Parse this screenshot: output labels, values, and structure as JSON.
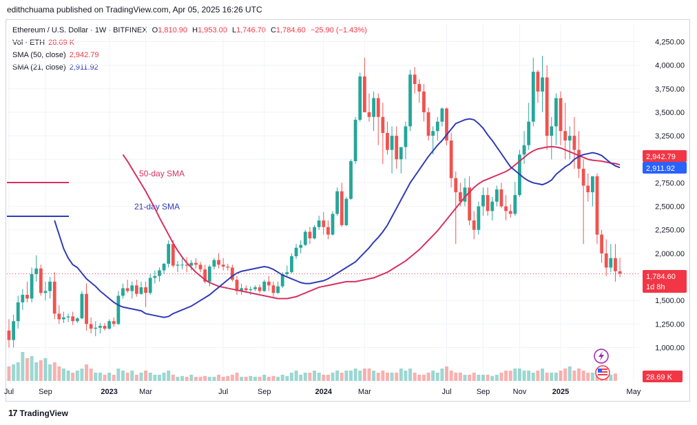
{
  "publish_line": "edithchuama published on TradingView.com, Apr 05, 2025 16:26 UTC",
  "symbol": {
    "title": "Ethereum / U.S. Dollar · 1W · BITFINEX",
    "open_label": "O",
    "open": "1,810.90",
    "high_label": "H",
    "high": "1,953.00",
    "low_label": "L",
    "low": "1,746.70",
    "close_label": "C",
    "close": "1,784.60",
    "change": "−25.90 (−1.43%)"
  },
  "volume": {
    "label": "Vol · ETH",
    "value": "28.69 K"
  },
  "sma50": {
    "label": "SMA (50, close)",
    "value": "2,942.79"
  },
  "sma21": {
    "label": "SMA (21, close)",
    "value": "2,911.92"
  },
  "footer": {
    "brand": "TradingView",
    "logo": "17"
  },
  "colors": {
    "up": "#26a69a",
    "down": "#ef5350",
    "sma50": "#d6305e",
    "sma21": "#2f3bb5",
    "tag_red": "#f23645",
    "tag_blue": "#2962ff"
  },
  "price_tags": {
    "sma50": "2,942.79",
    "sma21": "2,911.92",
    "last_price": "1,784.60",
    "countdown": "1d 8h",
    "volume": "28.69 K"
  },
  "chart_data": {
    "type": "candlestick",
    "title": "Ethereum / U.S. Dollar · 1W · BITFINEX",
    "y_ticks": [
      "4,250.00",
      "4,000.00",
      "3,750.00",
      "3,500.00",
      "3,250.00",
      "3,000.00",
      "2,750.00",
      "2,500.00",
      "2,250.00",
      "2,000.00",
      "1,750.00",
      "1,500.00",
      "1,250.00",
      "1,000.00"
    ],
    "y_tick_values": [
      4250,
      4000,
      3750,
      3500,
      3250,
      3000,
      2750,
      2500,
      2250,
      2000,
      1750,
      1500,
      1250,
      1000
    ],
    "ylim": [
      850,
      4400
    ],
    "x_ticks": [
      "Jul",
      "Sep",
      "2023",
      "Mar",
      "Jul",
      "Sep",
      "2024",
      "Mar",
      "Jul",
      "Sep",
      "Nov",
      "2025",
      "May"
    ],
    "x_tick_weeks": [
      0,
      8,
      22,
      30,
      47,
      56,
      69,
      78,
      96,
      104,
      112,
      121,
      137
    ],
    "annotations": [
      {
        "text": "50-day SMA",
        "color": "#d6305e"
      },
      {
        "text": "21-day SMA",
        "color": "#2f3bb5"
      }
    ],
    "candles": [
      [
        1180,
        1300,
        1000,
        1080
      ],
      [
        1080,
        1350,
        1000,
        1280
      ],
      [
        1280,
        1550,
        1200,
        1480
      ],
      [
        1480,
        1620,
        1400,
        1560
      ],
      [
        1560,
        1700,
        1480,
        1520
      ],
      [
        1520,
        1850,
        1480,
        1780
      ],
      [
        1780,
        1980,
        1700,
        1840
      ],
      [
        1840,
        1880,
        1550,
        1580
      ],
      [
        1580,
        1700,
        1500,
        1600
      ],
      [
        1600,
        1750,
        1520,
        1700
      ],
      [
        1700,
        1800,
        1300,
        1360
      ],
      [
        1360,
        1450,
        1250,
        1300
      ],
      [
        1300,
        1380,
        1260,
        1320
      ],
      [
        1320,
        1360,
        1270,
        1330
      ],
      [
        1330,
        1380,
        1240,
        1280
      ],
      [
        1280,
        1320,
        1260,
        1310
      ],
      [
        1310,
        1600,
        1300,
        1570
      ],
      [
        1570,
        1680,
        1180,
        1250
      ],
      [
        1250,
        1320,
        1150,
        1200
      ],
      [
        1200,
        1280,
        1120,
        1210
      ],
      [
        1210,
        1260,
        1150,
        1230
      ],
      [
        1230,
        1260,
        1180,
        1200
      ],
      [
        1200,
        1300,
        1190,
        1280
      ],
      [
        1280,
        1320,
        1220,
        1250
      ],
      [
        1250,
        1600,
        1240,
        1550
      ],
      [
        1550,
        1680,
        1520,
        1630
      ],
      [
        1630,
        1720,
        1580,
        1600
      ],
      [
        1600,
        1700,
        1520,
        1660
      ],
      [
        1660,
        1720,
        1540,
        1570
      ],
      [
        1570,
        1700,
        1560,
        1640
      ],
      [
        1640,
        1700,
        1430,
        1580
      ],
      [
        1580,
        1780,
        1560,
        1740
      ],
      [
        1740,
        1820,
        1680,
        1760
      ],
      [
        1760,
        1850,
        1700,
        1820
      ],
      [
        1820,
        1900,
        1780,
        1890
      ],
      [
        1890,
        2140,
        1850,
        2100
      ],
      [
        2100,
        2140,
        1850,
        1870
      ],
      [
        1870,
        1920,
        1800,
        1880
      ],
      [
        1880,
        1950,
        1830,
        1880
      ],
      [
        1880,
        1960,
        1800,
        1870
      ],
      [
        1870,
        1930,
        1820,
        1900
      ],
      [
        1900,
        1950,
        1840,
        1880
      ],
      [
        1880,
        1910,
        1800,
        1830
      ],
      [
        1830,
        1880,
        1680,
        1700
      ],
      [
        1700,
        1880,
        1650,
        1860
      ],
      [
        1860,
        1950,
        1830,
        1930
      ],
      [
        1930,
        2000,
        1840,
        1880
      ],
      [
        1880,
        1950,
        1820,
        1860
      ],
      [
        1860,
        1890,
        1820,
        1850
      ],
      [
        1850,
        1880,
        1700,
        1720
      ],
      [
        1720,
        1760,
        1560,
        1600
      ],
      [
        1600,
        1680,
        1560,
        1630
      ],
      [
        1630,
        1660,
        1580,
        1610
      ],
      [
        1610,
        1650,
        1560,
        1620
      ],
      [
        1620,
        1660,
        1600,
        1640
      ],
      [
        1640,
        1670,
        1580,
        1600
      ],
      [
        1600,
        1720,
        1590,
        1700
      ],
      [
        1700,
        1760,
        1600,
        1660
      ],
      [
        1660,
        1700,
        1540,
        1580
      ],
      [
        1580,
        1700,
        1570,
        1650
      ],
      [
        1650,
        1800,
        1630,
        1780
      ],
      [
        1780,
        1870,
        1760,
        1800
      ],
      [
        1800,
        2000,
        1790,
        1970
      ],
      [
        1970,
        2100,
        1940,
        2060
      ],
      [
        2060,
        2140,
        2000,
        2090
      ],
      [
        2090,
        2250,
        2080,
        2230
      ],
      [
        2230,
        2280,
        2100,
        2160
      ],
      [
        2160,
        2300,
        2150,
        2280
      ],
      [
        2280,
        2400,
        2250,
        2350
      ],
      [
        2350,
        2440,
        2200,
        2280
      ],
      [
        2280,
        2350,
        2150,
        2200
      ],
      [
        2200,
        2450,
        2190,
        2420
      ],
      [
        2420,
        2700,
        2400,
        2660
      ],
      [
        2660,
        2750,
        2280,
        2300
      ],
      [
        2300,
        2600,
        2290,
        2580
      ],
      [
        2580,
        3000,
        2570,
        2980
      ],
      [
        2980,
        3450,
        2950,
        3420
      ],
      [
        3420,
        3920,
        3400,
        3880
      ],
      [
        3880,
        4080,
        3500,
        3500
      ],
      [
        3500,
        3700,
        3400,
        3450
      ],
      [
        3450,
        3720,
        3300,
        3650
      ],
      [
        3650,
        3700,
        3150,
        3450
      ],
      [
        3450,
        3600,
        2950,
        3280
      ],
      [
        3280,
        3400,
        3050,
        3100
      ],
      [
        3100,
        3350,
        2850,
        3250
      ],
      [
        3250,
        3350,
        2900,
        3000
      ],
      [
        3000,
        3100,
        2850,
        3130
      ],
      [
        3130,
        3400,
        3000,
        3350
      ],
      [
        3350,
        3950,
        3300,
        3900
      ],
      [
        3900,
        3980,
        3700,
        3800
      ],
      [
        3800,
        3850,
        3600,
        3720
      ],
      [
        3720,
        3800,
        3400,
        3500
      ],
      [
        3500,
        3550,
        3200,
        3250
      ],
      [
        3250,
        3350,
        3050,
        3300
      ],
      [
        3300,
        3450,
        3200,
        3400
      ],
      [
        3400,
        3550,
        3350,
        3540
      ],
      [
        3540,
        3550,
        3150,
        3200
      ],
      [
        3200,
        3280,
        2700,
        2800
      ],
      [
        2800,
        2870,
        2100,
        2650
      ],
      [
        2650,
        2750,
        2500,
        2550
      ],
      [
        2550,
        2800,
        2500,
        2700
      ],
      [
        2700,
        2820,
        2300,
        2350
      ],
      [
        2350,
        2450,
        2150,
        2250
      ],
      [
        2250,
        2550,
        2200,
        2500
      ],
      [
        2500,
        2700,
        2400,
        2620
      ],
      [
        2620,
        2700,
        2400,
        2450
      ],
      [
        2450,
        2600,
        2350,
        2550
      ],
      [
        2550,
        2720,
        2500,
        2680
      ],
      [
        2680,
        2750,
        2480,
        2500
      ],
      [
        2500,
        2620,
        2350,
        2450
      ],
      [
        2450,
        2520,
        2380,
        2420
      ],
      [
        2420,
        2760,
        2400,
        2620
      ],
      [
        2620,
        3100,
        2600,
        3050
      ],
      [
        3050,
        3300,
        2950,
        3150
      ],
      [
        3150,
        3600,
        3100,
        3400
      ],
      [
        3400,
        4080,
        3350,
        3930
      ],
      [
        3930,
        3950,
        3600,
        3720
      ],
      [
        3720,
        4100,
        3500,
        3870
      ],
      [
        3870,
        4000,
        3100,
        3250
      ],
      [
        3250,
        3450,
        3000,
        3350
      ],
      [
        3350,
        3700,
        3150,
        3650
      ],
      [
        3650,
        3720,
        3150,
        3300
      ],
      [
        3300,
        3600,
        3000,
        3200
      ],
      [
        3200,
        3350,
        3000,
        3250
      ],
      [
        3250,
        3450,
        2900,
        3100
      ],
      [
        3100,
        3300,
        2800,
        2900
      ],
      [
        2900,
        3000,
        2100,
        2720
      ],
      [
        2720,
        2850,
        2550,
        2650
      ],
      [
        2650,
        2800,
        2500,
        2820
      ],
      [
        2820,
        2850,
        2100,
        2200
      ],
      [
        2200,
        2250,
        1900,
        2000
      ],
      [
        2000,
        2150,
        1760,
        1850
      ],
      [
        1850,
        2100,
        1800,
        1950
      ],
      [
        1950,
        2100,
        1700,
        1810
      ],
      [
        1810,
        1953,
        1746.7,
        1784.6
      ]
    ],
    "volume_relative": [
      0.35,
      0.4,
      0.45,
      0.7,
      0.55,
      0.6,
      0.45,
      0.5,
      0.55,
      0.4,
      0.45,
      0.35,
      0.3,
      0.25,
      0.2,
      0.25,
      0.3,
      0.4,
      0.3,
      0.2,
      0.2,
      0.15,
      0.2,
      0.15,
      0.3,
      0.25,
      0.2,
      0.25,
      0.15,
      0.2,
      0.25,
      0.2,
      0.15,
      0.15,
      0.2,
      0.25,
      0.15,
      0.1,
      0.12,
      0.1,
      0.15,
      0.1,
      0.1,
      0.12,
      0.1,
      0.1,
      0.15,
      0.1,
      0.12,
      0.15,
      0.2,
      0.1,
      0.1,
      0.12,
      0.1,
      0.1,
      0.15,
      0.1,
      0.12,
      0.1,
      0.15,
      0.12,
      0.2,
      0.25,
      0.15,
      0.2,
      0.2,
      0.25,
      0.2,
      0.15,
      0.15,
      0.2,
      0.25,
      0.2,
      0.25,
      0.25,
      0.3,
      0.25,
      0.3,
      0.3,
      0.25,
      0.2,
      0.25,
      0.2,
      0.2,
      0.2,
      0.3,
      0.25,
      0.3,
      0.2,
      0.15,
      0.15,
      0.2,
      0.25,
      0.2,
      0.3,
      0.35,
      0.25,
      0.2,
      0.2,
      0.15,
      0.15,
      0.2,
      0.15,
      0.15,
      0.15,
      0.12,
      0.15,
      0.2,
      0.25,
      0.25,
      0.3,
      0.3,
      0.25,
      0.25,
      0.2,
      0.25,
      0.3,
      0.2,
      0.2,
      0.2,
      0.25,
      0.3,
      0.35,
      0.25,
      0.3,
      0.25,
      0.2,
      0.2,
      0.25,
      0.2,
      0.2,
      0.15,
      0.18
    ],
    "sma21": [
      2350,
      2200,
      2050,
      1950,
      1880,
      1850,
      1790,
      1730,
      1690,
      1650,
      1600,
      1560,
      1520,
      1480,
      1450,
      1430,
      1420,
      1410,
      1400,
      1390,
      1360,
      1350,
      1340,
      1330,
      1320,
      1330,
      1360,
      1380,
      1400,
      1420,
      1440,
      1470,
      1500,
      1530,
      1560,
      1600,
      1640,
      1680,
      1720,
      1760,
      1790,
      1810,
      1820,
      1830,
      1840,
      1850,
      1860,
      1850,
      1830,
      1800,
      1770,
      1750,
      1730,
      1710,
      1690,
      1680,
      1680,
      1690,
      1700,
      1710,
      1730,
      1760,
      1790,
      1820,
      1850,
      1880,
      1910,
      1960,
      2010,
      2060,
      2120,
      2170,
      2230,
      2300,
      2390,
      2480,
      2570,
      2660,
      2750,
      2820,
      2890,
      2960,
      3030,
      3090,
      3150,
      3200,
      3260,
      3320,
      3380,
      3400,
      3420,
      3430,
      3420,
      3380,
      3330,
      3260,
      3200,
      3130,
      3060,
      2990,
      2920,
      2880,
      2840,
      2800,
      2770,
      2750,
      2740,
      2730,
      2750,
      2780,
      2840,
      2880,
      2920,
      2950,
      3000,
      3030,
      3050,
      3060,
      3070,
      3060,
      3040,
      3000,
      2960,
      2930,
      2912
    ],
    "sma50": [
      3050,
      2980,
      2900,
      2820,
      2740,
      2660,
      2570,
      2480,
      2380,
      2290,
      2200,
      2110,
      2030,
      1960,
      1900,
      1850,
      1800,
      1760,
      1720,
      1690,
      1670,
      1650,
      1640,
      1630,
      1620,
      1610,
      1600,
      1590,
      1580,
      1570,
      1560,
      1550,
      1540,
      1530,
      1520,
      1520,
      1520,
      1530,
      1540,
      1560,
      1580,
      1600,
      1620,
      1640,
      1650,
      1660,
      1670,
      1680,
      1690,
      1700,
      1700,
      1700,
      1710,
      1720,
      1730,
      1740,
      1760,
      1780,
      1800,
      1830,
      1860,
      1890,
      1920,
      1960,
      2000,
      2040,
      2090,
      2140,
      2190,
      2240,
      2300,
      2360,
      2420,
      2480,
      2540,
      2600,
      2650,
      2700,
      2740,
      2770,
      2790,
      2810,
      2830,
      2850,
      2870,
      2900,
      2940,
      2980,
      3020,
      3060,
      3090,
      3110,
      3120,
      3130,
      3135,
      3130,
      3120,
      3100,
      3080,
      3060,
      3040,
      3020,
      3000,
      2990,
      2985,
      2980,
      2970,
      2960,
      2955,
      2942
    ]
  }
}
